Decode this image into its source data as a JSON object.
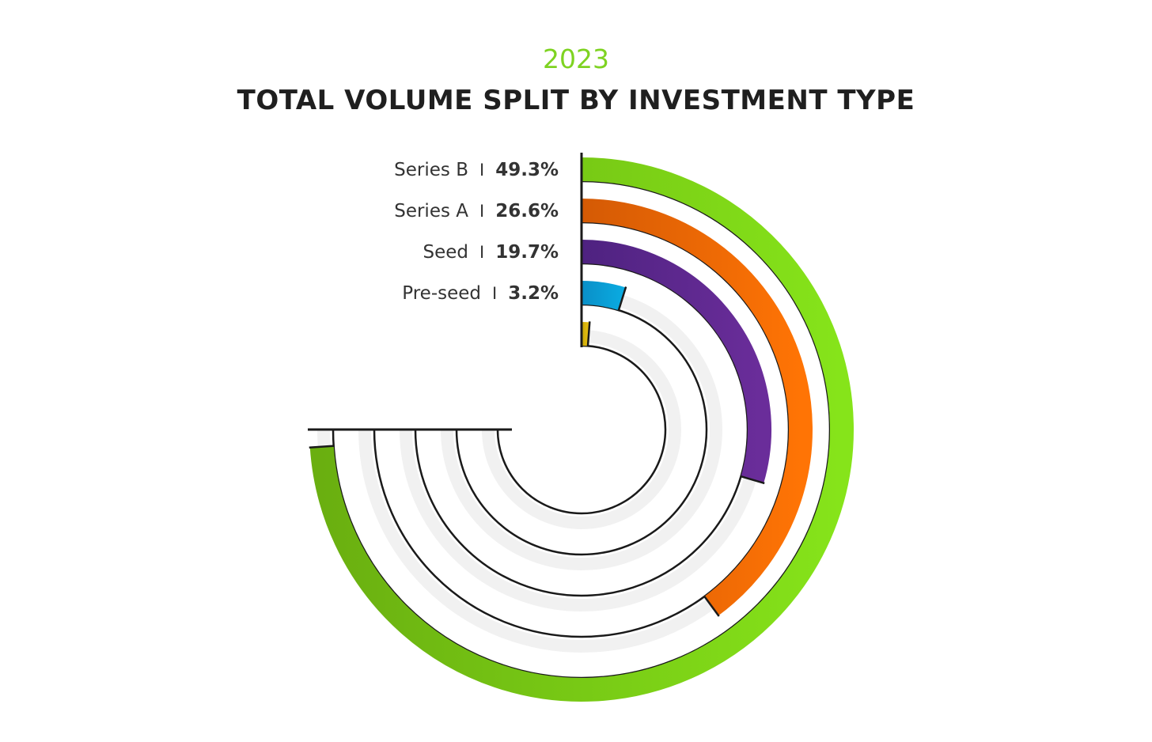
{
  "chart_data": {
    "type": "radial-bar",
    "subtitle": "2023",
    "title": "TOTAL VOLUME SPLIT BY INVESTMENT TYPE",
    "max_angle_degrees": 270,
    "value_max": 50,
    "separator": "I",
    "series": [
      {
        "label": "Series B",
        "value": 49.3,
        "display": "49.3%",
        "color_start": "#6aaf10",
        "color_end": "#86e41a"
      },
      {
        "label": "Series A",
        "value": 26.6,
        "display": "26.6%",
        "color_start": "#d45a05",
        "color_end": "#ff7405"
      },
      {
        "label": "Seed",
        "value": 19.7,
        "display": "19.7%",
        "color_start": "#4e2280",
        "color_end": "#6a2d9a"
      },
      {
        "label": "Pre-seed",
        "value": 3.2,
        "display": "3.2%",
        "color_start": "#0a8fc7",
        "color_end": "#0aaae0"
      },
      {
        "label": "",
        "value": 0.8,
        "display": "",
        "color_start": "#c8a80a",
        "color_end": "#e8c010"
      }
    ]
  }
}
